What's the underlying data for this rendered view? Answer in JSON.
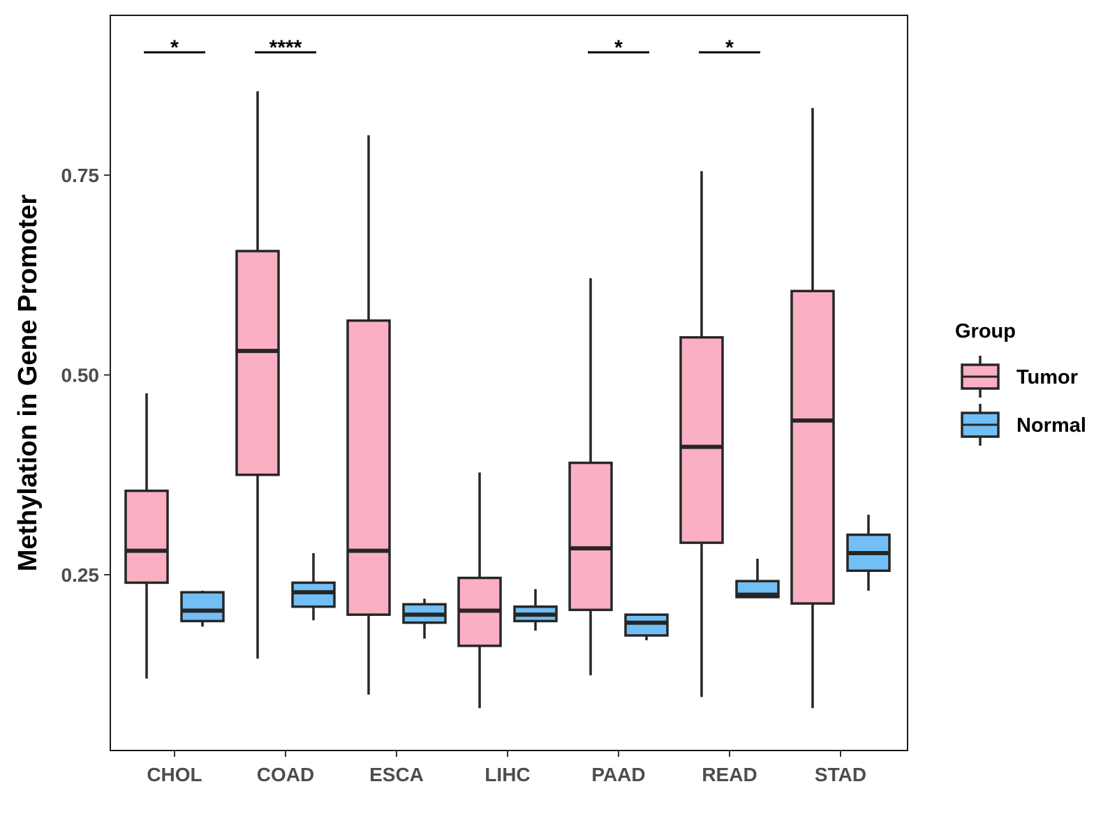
{
  "chart_data": {
    "type": "boxplot",
    "title": "",
    "xlabel": "",
    "ylabel": "Methylation in Gene Promoter",
    "ylim": [
      0.03,
      0.95
    ],
    "yticks": [
      0.25,
      0.5,
      0.75
    ],
    "ytick_labels": [
      "0.25",
      "0.50",
      "0.75"
    ],
    "categories": [
      "CHOL",
      "COAD",
      "ESCA",
      "LIHC",
      "PAAD",
      "READ",
      "STAD"
    ],
    "legend": {
      "title": "Group",
      "position": "right",
      "entries": [
        {
          "name": "Tumor",
          "color": "#FAAFC2"
        },
        {
          "name": "Normal",
          "color": "#72BFF5"
        }
      ]
    },
    "series": [
      {
        "name": "Tumor",
        "color": "#FAAFC2",
        "boxes": [
          {
            "min": 0.12,
            "q1": 0.24,
            "median": 0.28,
            "q3": 0.355,
            "max": 0.477
          },
          {
            "min": 0.145,
            "q1": 0.375,
            "median": 0.53,
            "q3": 0.655,
            "max": 0.855
          },
          {
            "min": 0.1,
            "q1": 0.2,
            "median": 0.28,
            "q3": 0.568,
            "max": 0.8
          },
          {
            "min": 0.083,
            "q1": 0.161,
            "median": 0.205,
            "q3": 0.246,
            "max": 0.378
          },
          {
            "min": 0.124,
            "q1": 0.206,
            "median": 0.283,
            "q3": 0.39,
            "max": 0.621
          },
          {
            "min": 0.097,
            "q1": 0.29,
            "median": 0.41,
            "q3": 0.547,
            "max": 0.755
          },
          {
            "min": 0.083,
            "q1": 0.214,
            "median": 0.443,
            "q3": 0.605,
            "max": 0.834
          }
        ]
      },
      {
        "name": "Normal",
        "color": "#72BFF5",
        "boxes": [
          {
            "min": 0.185,
            "q1": 0.192,
            "median": 0.205,
            "q3": 0.228,
            "max": 0.23
          },
          {
            "min": 0.193,
            "q1": 0.21,
            "median": 0.228,
            "q3": 0.24,
            "max": 0.277
          },
          {
            "min": 0.17,
            "q1": 0.19,
            "median": 0.2,
            "q3": 0.213,
            "max": 0.22
          },
          {
            "min": 0.18,
            "q1": 0.192,
            "median": 0.2,
            "q3": 0.21,
            "max": 0.232
          },
          {
            "min": 0.168,
            "q1": 0.174,
            "median": 0.19,
            "q3": 0.2,
            "max": 0.2
          },
          {
            "min": 0.222,
            "q1": 0.222,
            "median": 0.225,
            "q3": 0.242,
            "max": 0.27
          },
          {
            "min": 0.23,
            "q1": 0.255,
            "median": 0.277,
            "q3": 0.3,
            "max": 0.325
          }
        ]
      }
    ],
    "annotations": [
      {
        "category": "CHOL",
        "label": "*"
      },
      {
        "category": "COAD",
        "label": "****"
      },
      {
        "category": "PAAD",
        "label": "*"
      },
      {
        "category": "READ",
        "label": "*"
      }
    ]
  }
}
